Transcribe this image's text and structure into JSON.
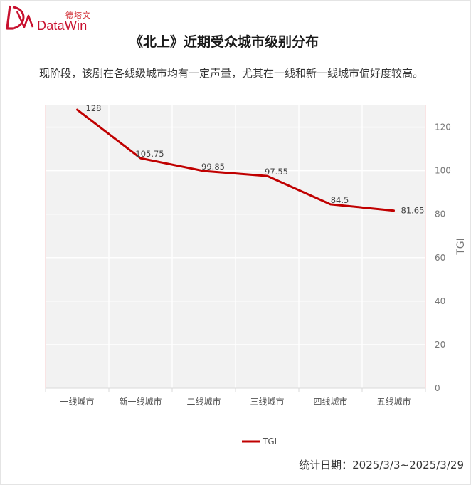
{
  "brand": {
    "name_cn": "德塔文",
    "name_en": "DataWin",
    "logo_icon": "datawin-logo-icon"
  },
  "title": "《北上》近期受众城市级别分布",
  "subtitle": "现阶段，该剧在各线级城市均有一定声量，尤其在一线和新一线城市偏好度较高。",
  "footer": {
    "label": "统计日期：",
    "date_range": "2025/3/3~2025/3/29"
  },
  "colors": {
    "line": "#c00000",
    "plot_bg": "#f2f2f2",
    "grid": "#ffffff"
  },
  "chart_data": {
    "type": "line",
    "title": "",
    "xlabel": "",
    "ylabel": "TGI",
    "categories": [
      "一线城市",
      "新一线城市",
      "二线城市",
      "三线城市",
      "四线城市",
      "五线城市"
    ],
    "series": [
      {
        "name": "TGI",
        "values": [
          128,
          105.75,
          99.85,
          97.55,
          84.5,
          81.65
        ],
        "labels": [
          "128",
          "105.75",
          "99.85",
          "97.55",
          "84.5",
          "81.65"
        ]
      }
    ],
    "ylim": [
      0,
      130
    ],
    "yticks": [
      "0",
      "20",
      "40",
      "60",
      "80",
      "100",
      "120"
    ],
    "y_axis_side": "right",
    "grid": true,
    "legend": "bottom-center"
  }
}
